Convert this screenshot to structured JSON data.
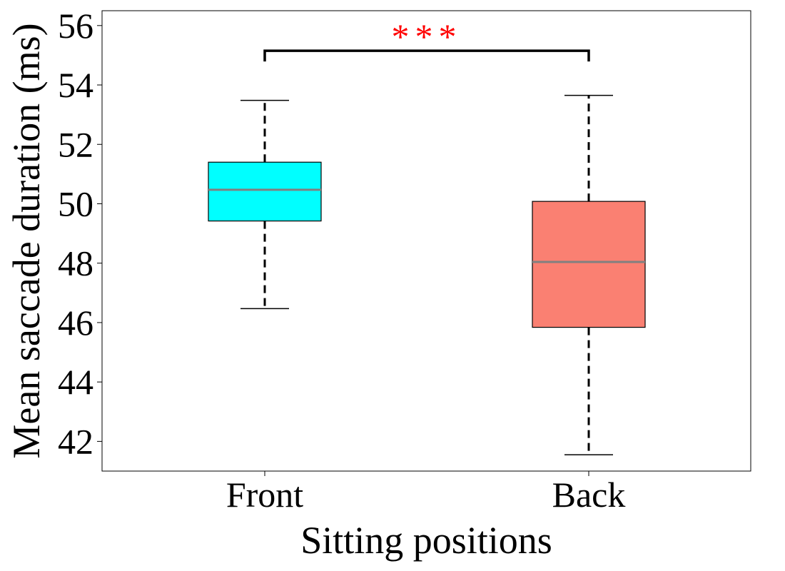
{
  "chart_data": {
    "type": "box",
    "xlabel": "Sitting positions",
    "ylabel": "Mean saccade duration (ms)",
    "ylim": [
      41.0,
      56.5
    ],
    "yticks": [
      42,
      44,
      46,
      48,
      50,
      52,
      54,
      56
    ],
    "grid": false,
    "categories": [
      "Front",
      "Back"
    ],
    "boxes": [
      {
        "category": "Front",
        "whisker_low": 46.47,
        "q1": 49.42,
        "median": 50.47,
        "q3": 51.4,
        "whisker_high": 53.48,
        "fill": "#00ffff"
      },
      {
        "category": "Back",
        "whisker_low": 41.55,
        "q1": 45.84,
        "median": 48.04,
        "q3": 50.08,
        "whisker_high": 53.65,
        "fill": "#fa8072"
      }
    ],
    "significance": {
      "label": "***",
      "from": "Front",
      "to": "Back",
      "bracket_y": 55.15,
      "color": "#ff0000"
    },
    "median_color": "#808080"
  }
}
